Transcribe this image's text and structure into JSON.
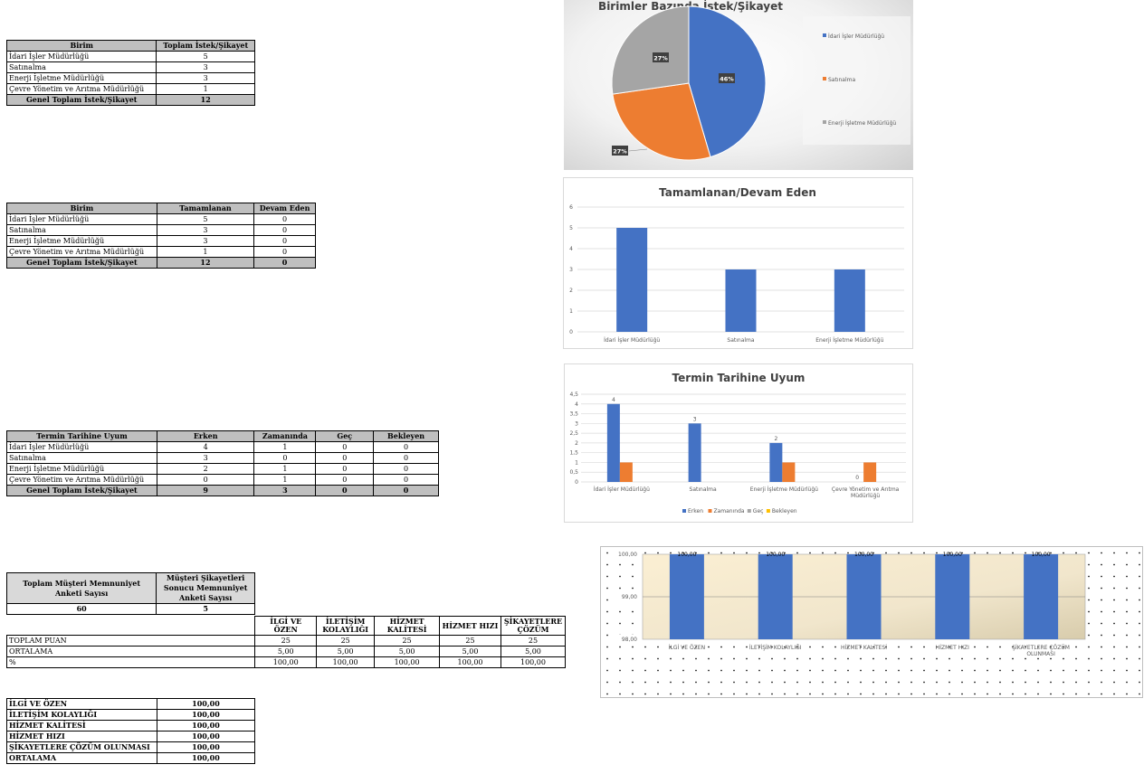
{
  "table1": {
    "headers": [
      "Birim",
      "Toplam İstek/Şikayet"
    ],
    "rows": [
      [
        "İdari İşler Müdürlüğü",
        "5"
      ],
      [
        "Satınalma",
        "3"
      ],
      [
        "Enerji İşletme Müdürlüğü",
        "3"
      ],
      [
        "Çevre Yönetim ve Arıtma Müdürlüğü",
        "1"
      ]
    ],
    "total": [
      "Genel Toplam İstek/Şikayet",
      "12"
    ]
  },
  "table2": {
    "headers": [
      "Birim",
      "Tamamlanan",
      "Devam Eden"
    ],
    "rows": [
      [
        "İdari İşler Müdürlüğü",
        "5",
        "0"
      ],
      [
        "Satınalma",
        "3",
        "0"
      ],
      [
        "Enerji İşletme Müdürlüğü",
        "3",
        "0"
      ],
      [
        "Çevre Yönetim ve Arıtma Müdürlüğü",
        "1",
        "0"
      ]
    ],
    "total": [
      "Genel Toplam İstek/Şikayet",
      "12",
      "0"
    ]
  },
  "table3": {
    "headers": [
      "Termin Tarihine Uyum",
      "Erken",
      "Zamanında",
      "Geç",
      "Bekleyen"
    ],
    "rows": [
      [
        "İdari İşler Müdürlüğü",
        "4",
        "1",
        "0",
        "0"
      ],
      [
        "Satınalma",
        "3",
        "0",
        "0",
        "0"
      ],
      [
        "Enerji İşletme Müdürlüğü",
        "2",
        "1",
        "0",
        "0"
      ],
      [
        "Çevre Yönetim ve Arıtma Müdürlüğü",
        "0",
        "1",
        "0",
        "0"
      ]
    ],
    "total": [
      "Genel Toplam İstek/Şikayet",
      "9",
      "3",
      "0",
      "0"
    ]
  },
  "survey": {
    "h1": "Toplam Müşteri Memnuniyet Anketi Sayısı",
    "h2": "Müşteri Şikayetleri Sonucu Memnuniyet Anketi Sayısı",
    "v1": "60",
    "v2": "5",
    "cols": [
      "İLGİ VE ÖZEN",
      "İLETİŞİM KOLAYLIĞI",
      "HİZMET KALİTESİ",
      "HİZMET HIZI",
      "ŞİKAYETLERE ÇÖZÜM"
    ],
    "rows": [
      {
        "label": "TOPLAM PUAN",
        "values": [
          "25",
          "25",
          "25",
          "25",
          "25"
        ]
      },
      {
        "label": "ORTALAMA",
        "values": [
          "5,00",
          "5,00",
          "5,00",
          "5,00",
          "5,00"
        ]
      },
      {
        "label": "%",
        "values": [
          "100,00",
          "100,00",
          "100,00",
          "100,00",
          "100,00"
        ]
      }
    ]
  },
  "summary": {
    "rows": [
      [
        "İLGİ VE ÖZEN",
        "100,00"
      ],
      [
        "İLETİŞİM KOLAYLIĞI",
        "100,00"
      ],
      [
        "HİZMET KALİTESİ",
        "100,00"
      ],
      [
        "HİZMET HIZI",
        "100,00"
      ],
      [
        "ŞİKAYETLERE ÇÖZÜM OLUNMASI",
        "100,00"
      ]
    ],
    "total": [
      "ORTALAMA",
      "100,00"
    ]
  },
  "chart_data": [
    {
      "type": "pie",
      "title": "Birimler Bazında İstek/Şikayet",
      "categories": [
        "İdari İşler Müdürlüğü",
        "Satınalma",
        "Enerji İşletme Müdürlüğü"
      ],
      "values": [
        5,
        3,
        3
      ],
      "labels": [
        "46%",
        "27%",
        "27%"
      ],
      "colors": [
        "#4472c4",
        "#ed7d31",
        "#a5a5a5"
      ],
      "legend": "right"
    },
    {
      "type": "bar",
      "title": "Tamamlanan/Devam Eden",
      "categories": [
        "İdari İşler Müdürlüğü",
        "Satınalma",
        "Enerji İşletme Müdürlüğü"
      ],
      "values": [
        5,
        3,
        3
      ],
      "ylim": [
        0,
        6
      ],
      "yticks": [
        "0",
        "1",
        "2",
        "3",
        "4",
        "5",
        "6"
      ],
      "color": "#4472c4",
      "grid": true
    },
    {
      "type": "bar",
      "title": "Termin Tarihine Uyum",
      "categories": [
        "İdari İşler Müdürlüğü",
        "Satınalma",
        "Enerji İşletme Müdürlüğü",
        "Çevre Yönetim ve Arıtma Müdürlüğü"
      ],
      "series": [
        {
          "name": "Erken",
          "values": [
            4,
            3,
            2,
            0
          ],
          "color": "#4472c4",
          "labels": [
            "4",
            "3",
            "2",
            "0"
          ]
        },
        {
          "name": "Zamanında",
          "values": [
            1,
            0,
            1,
            1
          ],
          "color": "#ed7d31"
        },
        {
          "name": "Geç",
          "values": [
            0,
            0,
            0,
            0
          ],
          "color": "#a5a5a5"
        },
        {
          "name": "Bekleyen",
          "values": [
            0,
            0,
            0,
            0
          ],
          "color": "#ffc000"
        }
      ],
      "ylim": [
        0,
        4.5
      ],
      "yticks": [
        "0",
        "0,5",
        "1",
        "1,5",
        "2",
        "2,5",
        "3",
        "3,5",
        "4",
        "4,5"
      ],
      "legend": "bottom",
      "grid": true
    },
    {
      "type": "bar",
      "title": "",
      "categories": [
        "İLGİ VE ÖZEN",
        "İLETİŞİM KOLAYLIĞI",
        "HİZMET KALİTESİ",
        "HİZMET HIZI",
        "ŞİKAYETLERE ÇÖZÜM OLUNMASI"
      ],
      "values": [
        100,
        100,
        100,
        100,
        100
      ],
      "labels": [
        "100,00",
        "100,00",
        "100,00",
        "100,00",
        "100,00"
      ],
      "ylim": [
        98,
        100
      ],
      "yticks": [
        "98,00",
        "99,00",
        "100,00"
      ],
      "color": "#4472c4"
    }
  ]
}
